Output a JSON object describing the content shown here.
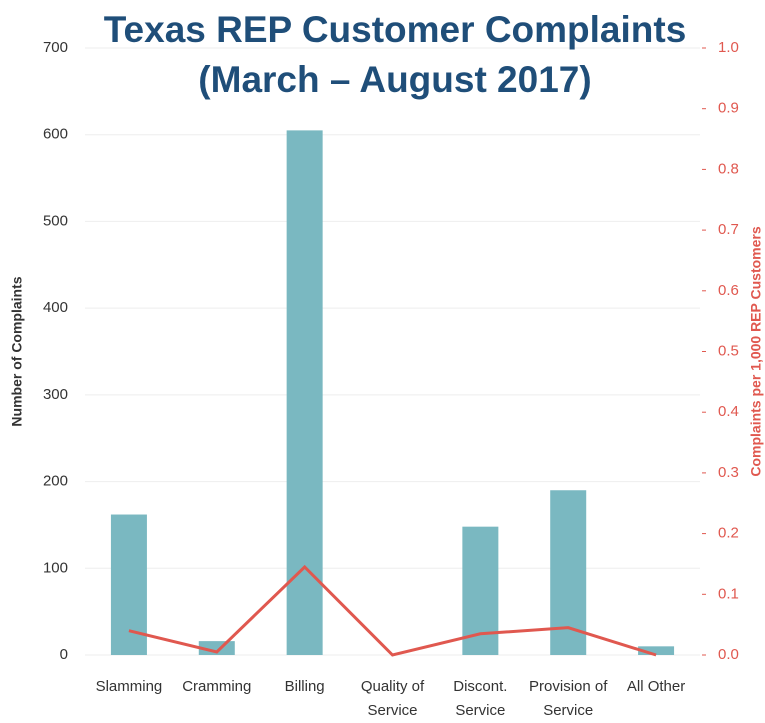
{
  "chart_data": {
    "type": "bar_line",
    "title": [
      "Texas REP Customer Complaints",
      "(March – August 2017)"
    ],
    "ylabel": "Number of Complaints",
    "y2label": "Complaints per 1,000 REP Customers",
    "categories": [
      "Slamming",
      "Cramming",
      "Billing",
      "Quality of Service",
      "Discont. Service",
      "Provision of Service",
      "All Other"
    ],
    "series": [
      {
        "type": "bar",
        "color": "#7ab8c1",
        "values": [
          162,
          16,
          605,
          0,
          148,
          190,
          10
        ]
      },
      {
        "type": "line",
        "axis": "y2",
        "color": "#e0584f",
        "values": [
          0.04,
          0.005,
          0.145,
          0.0,
          0.035,
          0.045,
          0.0
        ]
      }
    ],
    "ylim": [
      0,
      700
    ],
    "yticks": [
      0,
      100,
      200,
      300,
      400,
      500,
      600,
      700
    ],
    "y2lim": [
      0,
      1
    ],
    "y2ticks": [
      {
        "value": 0,
        "label": "0.0"
      },
      0.1,
      0.2,
      0.3,
      0.4,
      0.5,
      0.6,
      0.7,
      0.8,
      0.9,
      {
        "value": 1,
        "label": "1.0"
      }
    ],
    "grid": true
  }
}
